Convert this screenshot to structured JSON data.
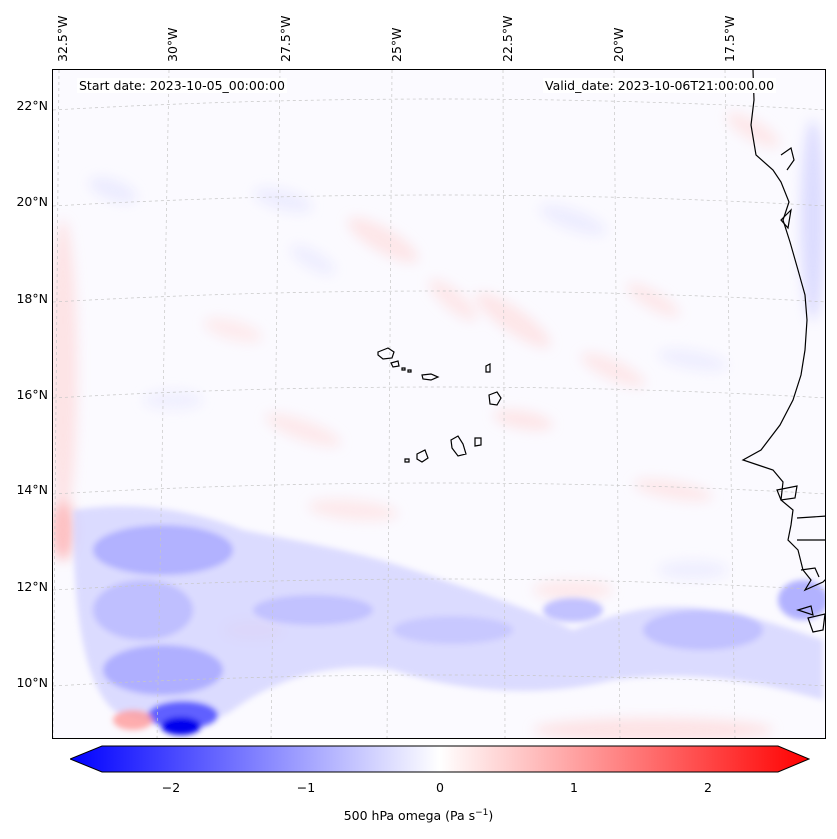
{
  "header": {
    "start_date": "Start date: 2023-10-05_00:00:00",
    "valid_date": "Valid_date: 2023-10-06T21:00:00.00"
  },
  "axes": {
    "lon_labels": [
      "32.5°W",
      "30°W",
      "27.5°W",
      "25°W",
      "22.5°W",
      "20°W",
      "17.5°W"
    ],
    "lat_labels": [
      "22°N",
      "20°N",
      "18°N",
      "16°N",
      "14°N",
      "12°N",
      "10°N"
    ]
  },
  "colorbar": {
    "ticks": [
      "−2",
      "−1",
      "0",
      "1",
      "2"
    ],
    "title": "500 hPa omega (Pa s",
    "title_sup": "−1",
    "title_end": ")",
    "range": [
      -2.75,
      2.75
    ],
    "colors": {
      "negative": "#0000ff",
      "zero": "#ffffff",
      "positive": "#ff0000"
    }
  },
  "map": {
    "field_range": [
      -2.75,
      2.75
    ],
    "coastline_color": "#000000",
    "gridline_color": "#b0b0b0"
  }
}
